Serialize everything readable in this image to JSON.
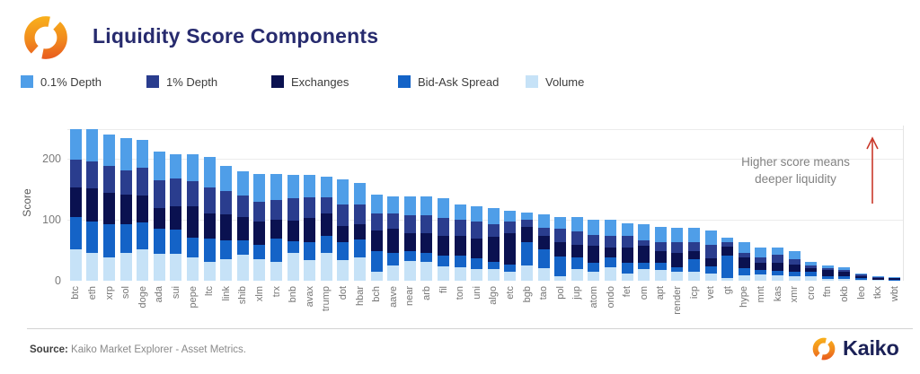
{
  "header": {
    "title": "Liquidity Score Components"
  },
  "legend": [
    {
      "label": "0.1% Depth",
      "color": "#4f9ee8"
    },
    {
      "label": "1% Depth",
      "color": "#2a3d8e"
    },
    {
      "label": "Exchanges",
      "color": "#0a1150"
    },
    {
      "label": "Bid-Ask Spread",
      "color": "#1463c7"
    },
    {
      "label": "Volume",
      "color": "#c6e2f7"
    }
  ],
  "annotation": {
    "line1": "Higher score means",
    "line2": "deeper liquidity",
    "arrow_color": "#c9392b"
  },
  "footer": {
    "source_label": "Source:",
    "source_text": " Kaiko Market Explorer - Asset Metrics.",
    "brand": "Kaiko"
  },
  "chart_data": {
    "type": "bar",
    "stacked": true,
    "title": "Liquidity Score Components",
    "xlabel": "",
    "ylabel": "Score",
    "ylim": [
      0,
      255
    ],
    "yticks": [
      0,
      100,
      200
    ],
    "gridlines": [
      100,
      200,
      250
    ],
    "grid": true,
    "legend_position": "top",
    "categories": [
      "btc",
      "eth",
      "xrp",
      "sol",
      "doge",
      "ada",
      "sui",
      "pepe",
      "ltc",
      "link",
      "shib",
      "xlm",
      "trx",
      "bnb",
      "avax",
      "trump",
      "dot",
      "hbar",
      "bch",
      "aave",
      "near",
      "arb",
      "fil",
      "ton",
      "uni",
      "algo",
      "etc",
      "bgb",
      "tao",
      "pol",
      "jup",
      "atom",
      "ondo",
      "fet",
      "om",
      "apt",
      "render",
      "icp",
      "vet",
      "gt",
      "hype",
      "mnt",
      "kas",
      "xmr",
      "cro",
      "ftn",
      "okb",
      "leo",
      "tkx",
      "wbt"
    ],
    "series": [
      {
        "name": "0.1% Depth",
        "color": "#4f9ee8",
        "values": [
          51,
          53,
          51,
          53,
          45,
          47,
          40,
          44,
          50,
          41,
          40,
          46,
          43,
          39,
          37,
          34,
          40,
          35,
          31,
          28,
          30,
          30,
          32,
          25,
          26,
          27,
          18,
          12,
          22,
          19,
          23,
          25,
          26,
          22,
          27,
          25,
          24,
          23,
          24,
          8,
          17,
          16,
          12,
          13,
          6,
          4,
          4,
          2,
          1,
          1
        ]
      },
      {
        "name": "1% Depth",
        "color": "#2a3d8e",
        "values": [
          46,
          44,
          45,
          40,
          46,
          46,
          46,
          41,
          44,
          39,
          35,
          32,
          33,
          36,
          34,
          27,
          36,
          33,
          28,
          25,
          30,
          30,
          29,
          27,
          28,
          21,
          19,
          11,
          14,
          22,
          22,
          17,
          20,
          19,
          8,
          15,
          17,
          15,
          22,
          7,
          8,
          10,
          14,
          9,
          4,
          4,
          3,
          2,
          1,
          1
        ]
      },
      {
        "name": "Exchanges",
        "color": "#0a1150",
        "values": [
          48,
          54,
          51,
          49,
          44,
          33,
          38,
          52,
          41,
          42,
          39,
          39,
          31,
          34,
          40,
          36,
          27,
          25,
          33,
          39,
          29,
          32,
          33,
          32,
          32,
          41,
          52,
          26,
          21,
          24,
          20,
          29,
          15,
          25,
          29,
          20,
          24,
          13,
          13,
          15,
          17,
          11,
          13,
          12,
          7,
          9,
          7,
          4,
          3,
          3
        ]
      },
      {
        "name": "Bid-Ask Spread",
        "color": "#1463c7",
        "values": [
          53,
          53,
          54,
          47,
          44,
          42,
          40,
          32,
          38,
          32,
          23,
          23,
          38,
          20,
          29,
          28,
          29,
          29,
          35,
          21,
          16,
          15,
          17,
          19,
          18,
          12,
          12,
          38,
          32,
          32,
          20,
          15,
          17,
          17,
          10,
          12,
          8,
          22,
          12,
          37,
          12,
          8,
          7,
          7,
          6,
          5,
          5,
          3,
          1,
          1
        ]
      },
      {
        "name": "Volume",
        "color": "#c6e2f7",
        "values": [
          52,
          45,
          39,
          46,
          52,
          44,
          44,
          39,
          31,
          35,
          43,
          36,
          31,
          45,
          34,
          46,
          34,
          39,
          14,
          25,
          33,
          31,
          24,
          22,
          19,
          19,
          14,
          25,
          20,
          8,
          19,
          14,
          22,
          12,
          19,
          17,
          14,
          14,
          12,
          4,
          9,
          10,
          9,
          7,
          8,
          3,
          3,
          1,
          1,
          0
        ]
      }
    ]
  }
}
